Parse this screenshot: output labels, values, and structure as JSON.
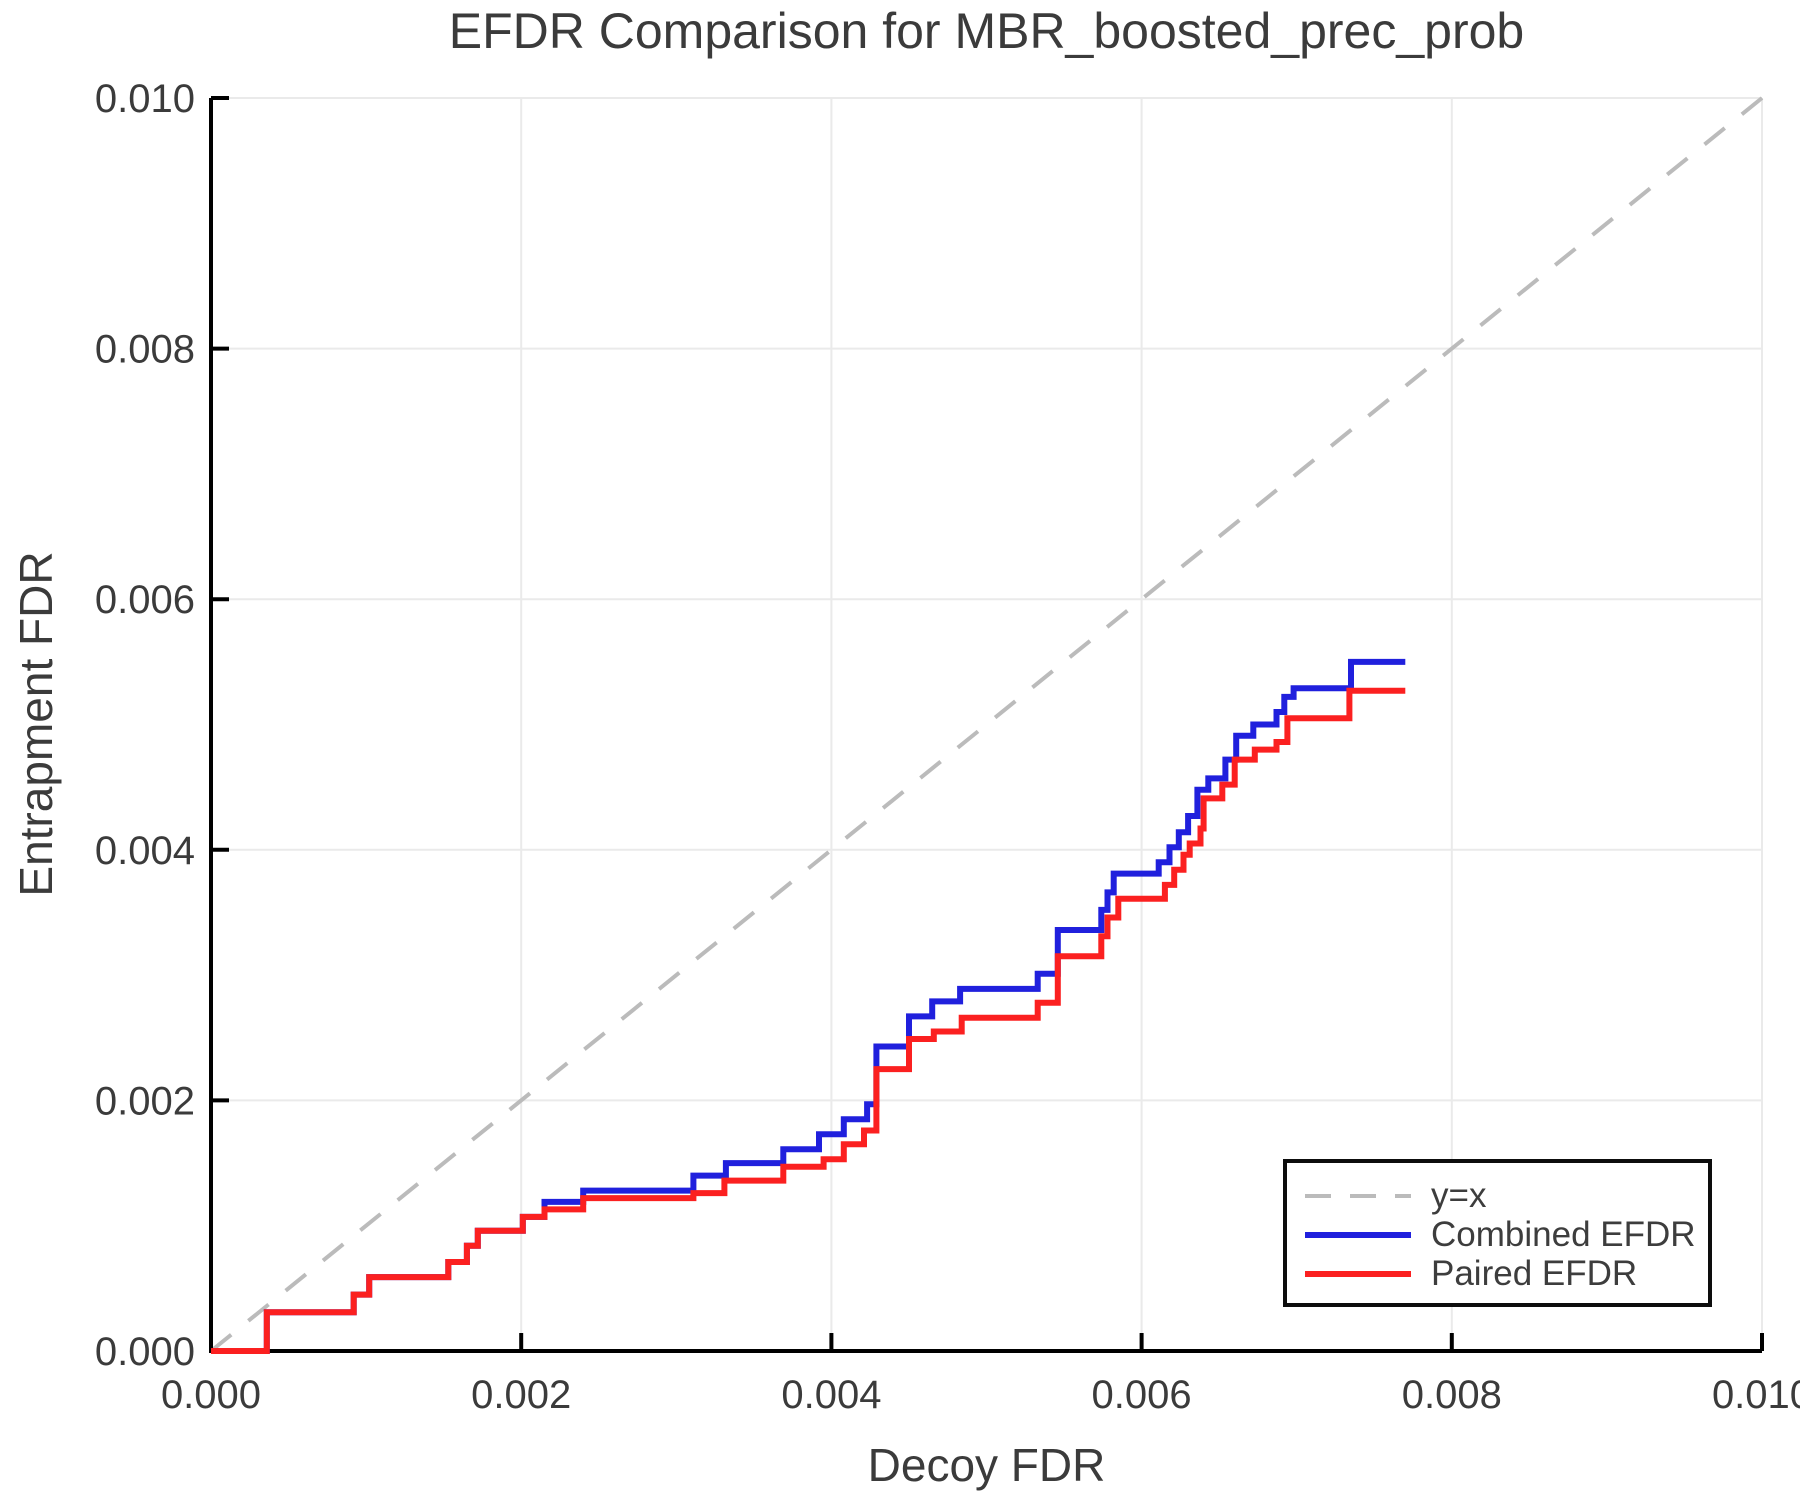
{
  "chart_data": {
    "type": "line",
    "title": "EFDR Comparison for MBR_boosted_prec_prob",
    "xlabel": "Decoy FDR",
    "ylabel": "Entrapment FDR",
    "xlim": [
      0.0,
      0.01
    ],
    "ylim": [
      0.0,
      0.01
    ],
    "xtick_values": [
      0.0,
      0.002,
      0.004,
      0.006,
      0.008,
      0.01
    ],
    "xtick_labels": [
      "0.000",
      "0.002",
      "0.004",
      "0.006",
      "0.008",
      "0.010"
    ],
    "ytick_values": [
      0.0,
      0.002,
      0.004,
      0.006,
      0.008,
      0.01
    ],
    "ytick_labels": [
      "0.000",
      "0.002",
      "0.004",
      "0.006",
      "0.008",
      "0.010"
    ],
    "grid": true,
    "grid_color": "#eaeaea",
    "axis_color": "#000000",
    "text_color": "#3b3b3b",
    "legend": {
      "position": "lower right",
      "items": [
        {
          "label": "y=x",
          "style": "dashed",
          "color": "#bbbbbb"
        },
        {
          "label": "Combined EFDR",
          "style": "solid",
          "color": "#2020dd"
        },
        {
          "label": "Paired EFDR",
          "style": "solid",
          "color": "#fb2020"
        }
      ]
    },
    "series": [
      {
        "name": "y=x",
        "style": "dashed",
        "color": "#bbbbbb",
        "line_width": 4,
        "points": [
          [
            0.0,
            0.0
          ],
          [
            0.01,
            0.01
          ]
        ]
      },
      {
        "name": "Combined EFDR",
        "style": "step",
        "color": "#2020dd",
        "line_width": 6,
        "x_end": 0.0077,
        "steps": [
          [
            0.0,
            0.0
          ],
          [
            0.00036,
            0.00031
          ],
          [
            0.00092,
            0.00045
          ],
          [
            0.00102,
            0.00059
          ],
          [
            0.00153,
            0.00071
          ],
          [
            0.00165,
            0.00084
          ],
          [
            0.00172,
            0.00096
          ],
          [
            0.00201,
            0.00107
          ],
          [
            0.00215,
            0.00119
          ],
          [
            0.0024,
            0.00128
          ],
          [
            0.00311,
            0.0014
          ],
          [
            0.00332,
            0.0015
          ],
          [
            0.00369,
            0.00161
          ],
          [
            0.00392,
            0.00173
          ],
          [
            0.00408,
            0.00185
          ],
          [
            0.00423,
            0.00197
          ],
          [
            0.00429,
            0.00243
          ],
          [
            0.0045,
            0.00267
          ],
          [
            0.00465,
            0.00279
          ],
          [
            0.00483,
            0.00289
          ],
          [
            0.00533,
            0.00301
          ],
          [
            0.00546,
            0.00336
          ],
          [
            0.00574,
            0.00352
          ],
          [
            0.00578,
            0.00366
          ],
          [
            0.00582,
            0.00381
          ],
          [
            0.00611,
            0.0039
          ],
          [
            0.00618,
            0.00402
          ],
          [
            0.00624,
            0.00414
          ],
          [
            0.0063,
            0.00427
          ],
          [
            0.00636,
            0.00448
          ],
          [
            0.00643,
            0.00457
          ],
          [
            0.00654,
            0.00472
          ],
          [
            0.00661,
            0.00491
          ],
          [
            0.00672,
            0.005
          ],
          [
            0.00687,
            0.0051
          ],
          [
            0.00692,
            0.00522
          ],
          [
            0.00698,
            0.00529
          ],
          [
            0.00735,
            0.0055
          ]
        ]
      },
      {
        "name": "Paired EFDR",
        "style": "step",
        "color": "#fb2020",
        "line_width": 6,
        "x_end": 0.0077,
        "steps": [
          [
            0.0,
            0.0
          ],
          [
            0.00036,
            0.00031
          ],
          [
            0.00092,
            0.00045
          ],
          [
            0.00102,
            0.00059
          ],
          [
            0.00153,
            0.00071
          ],
          [
            0.00165,
            0.00084
          ],
          [
            0.00172,
            0.00096
          ],
          [
            0.00201,
            0.00107
          ],
          [
            0.00215,
            0.00113
          ],
          [
            0.0024,
            0.00122
          ],
          [
            0.00311,
            0.00126
          ],
          [
            0.00331,
            0.00136
          ],
          [
            0.00369,
            0.00147
          ],
          [
            0.00395,
            0.00153
          ],
          [
            0.00408,
            0.00165
          ],
          [
            0.00421,
            0.00176
          ],
          [
            0.00429,
            0.00225
          ],
          [
            0.0045,
            0.00249
          ],
          [
            0.00466,
            0.00255
          ],
          [
            0.00484,
            0.00266
          ],
          [
            0.00533,
            0.00278
          ],
          [
            0.00546,
            0.00315
          ],
          [
            0.00574,
            0.00331
          ],
          [
            0.00578,
            0.00346
          ],
          [
            0.00585,
            0.00361
          ],
          [
            0.00615,
            0.00372
          ],
          [
            0.00621,
            0.00384
          ],
          [
            0.00627,
            0.00396
          ],
          [
            0.00631,
            0.00405
          ],
          [
            0.00638,
            0.00417
          ],
          [
            0.0064,
            0.00441
          ],
          [
            0.00652,
            0.00452
          ],
          [
            0.0066,
            0.00472
          ],
          [
            0.00673,
            0.0048
          ],
          [
            0.00687,
            0.00486
          ],
          [
            0.00694,
            0.00505
          ],
          [
            0.00734,
            0.00527
          ]
        ]
      }
    ]
  }
}
